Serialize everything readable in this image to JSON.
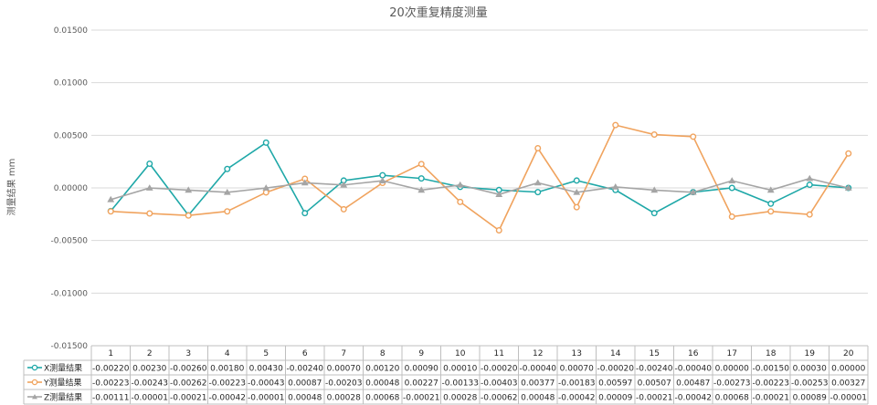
{
  "chart_data": {
    "type": "line",
    "title": "20次重复精度测量",
    "ylabel": "测量结果 mm",
    "xlabel": "",
    "categories": [
      "1",
      "2",
      "3",
      "4",
      "5",
      "6",
      "7",
      "8",
      "9",
      "10",
      "11",
      "12",
      "13",
      "14",
      "15",
      "16",
      "17",
      "18",
      "19",
      "20"
    ],
    "ylim": [
      -0.015,
      0.015
    ],
    "yticks": [
      "0.01500",
      "0.01000",
      "0.00500",
      "0.00000",
      "-0.00500",
      "-0.01000",
      "-0.01500"
    ],
    "grid": true,
    "legend": "data-table",
    "series": [
      {
        "name": "X测量结果",
        "color": "#1fa8a8",
        "marker": "circle",
        "values": [
          -0.0022,
          0.0023,
          -0.0026,
          0.0018,
          0.0043,
          -0.0024,
          0.0007,
          0.0012,
          0.0009,
          0.0001,
          -0.0002,
          -0.0004,
          0.0007,
          -0.0002,
          -0.0024,
          -0.0004,
          0.0,
          -0.0015,
          0.0003,
          0.0
        ],
        "labels": [
          "-0.00220",
          "0.00230",
          "-0.00260",
          "0.00180",
          "0.00430",
          "-0.00240",
          "0.00070",
          "0.00120",
          "0.00090",
          "0.00010",
          "-0.00020",
          "-0.00040",
          "0.00070",
          "-0.00020",
          "-0.00240",
          "-0.00040",
          "0.00000",
          "-0.00150",
          "0.00030",
          "0.00000"
        ]
      },
      {
        "name": "Y测量结果",
        "color": "#f0a35e",
        "marker": "circle",
        "values": [
          -0.00223,
          -0.00243,
          -0.00262,
          -0.00223,
          -0.00043,
          0.00087,
          -0.00203,
          0.00048,
          0.00227,
          -0.00133,
          -0.00403,
          0.00377,
          -0.00183,
          0.00597,
          0.00507,
          0.00487,
          -0.00273,
          -0.00223,
          -0.00253,
          0.00327
        ],
        "labels": [
          "-0.00223",
          "-0.00243",
          "-0.00262",
          "-0.00223",
          "-0.00043",
          "0.00087",
          "-0.00203",
          "0.00048",
          "0.00227",
          "-0.00133",
          "-0.00403",
          "0.00377",
          "-0.00183",
          "0.00597",
          "0.00507",
          "0.00487",
          "-0.00273",
          "-0.00223",
          "-0.00253",
          "0.00327"
        ]
      },
      {
        "name": "Z测量结果",
        "color": "#a5a5a5",
        "marker": "triangle",
        "values": [
          -0.00111,
          -1e-05,
          -0.00021,
          -0.00042,
          -1e-05,
          0.00048,
          0.00028,
          0.00068,
          -0.00021,
          0.00028,
          -0.00062,
          0.00048,
          -0.00042,
          9e-05,
          -0.00021,
          -0.00042,
          0.00068,
          -0.00021,
          0.00089,
          -1e-05
        ],
        "labels": [
          "-0.00111",
          "-0.00001",
          "-0.00021",
          "-0.00042",
          "-0.00001",
          "0.00048",
          "0.00028",
          "0.00068",
          "-0.00021",
          "0.00028",
          "-0.00062",
          "0.00048",
          "-0.00042",
          "0.00009",
          "-0.00021",
          "-0.00042",
          "0.00068",
          "-0.00021",
          "0.00089",
          "-0.00001"
        ]
      }
    ]
  }
}
